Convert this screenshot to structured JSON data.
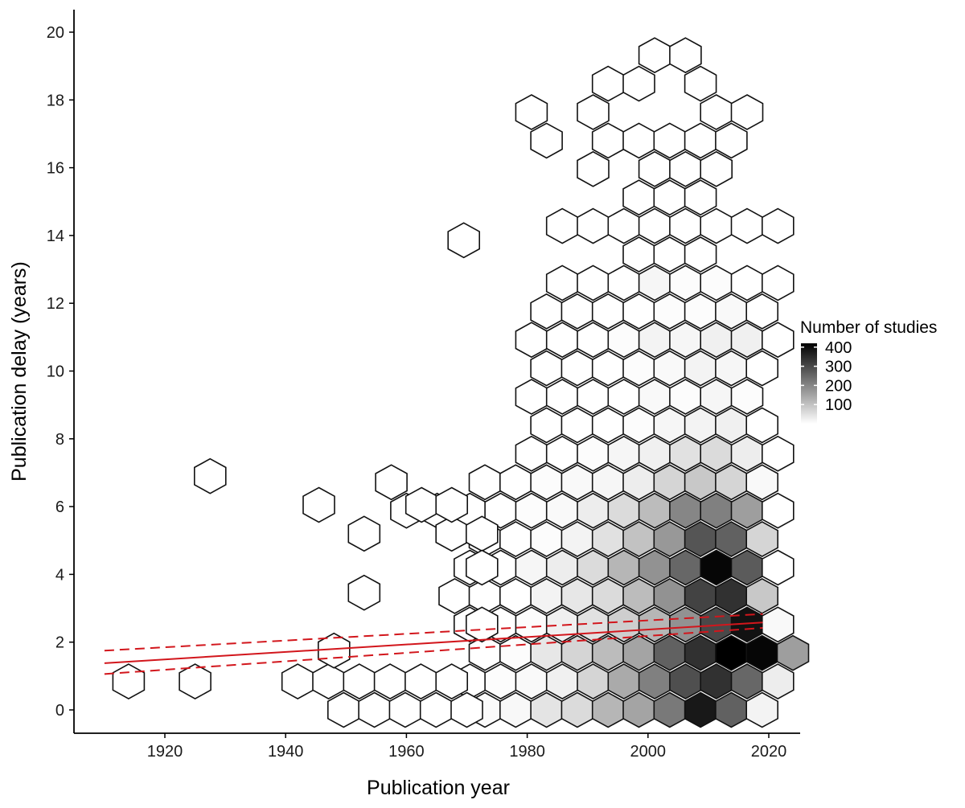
{
  "chart_data": {
    "type": "hexbin",
    "title": "",
    "xlabel": "Publication year",
    "ylabel": "Publication delay (years)",
    "xlim": [
      1905,
      2025
    ],
    "ylim": [
      -0.7,
      20.7
    ],
    "xticks": [
      1920,
      1940,
      1960,
      1980,
      2000,
      2020
    ],
    "yticks": [
      0,
      2,
      4,
      6,
      8,
      10,
      12,
      14,
      16,
      18,
      20
    ],
    "grid": false,
    "legend": {
      "title": "Number of studies",
      "placement": "right",
      "min": 0,
      "max": 420,
      "ticks": [
        100,
        200,
        300,
        400
      ]
    },
    "hex_spacing_years": 5.1,
    "hex_row_height": 0.84,
    "bins": [
      {
        "x": 1973.0,
        "y": 0.0,
        "count": 8
      },
      {
        "x": 1978.1,
        "y": 0.0,
        "count": 12
      },
      {
        "x": 1983.2,
        "y": 0.0,
        "count": 45
      },
      {
        "x": 1988.3,
        "y": 0.0,
        "count": 60
      },
      {
        "x": 1993.4,
        "y": 0.0,
        "count": 120
      },
      {
        "x": 1998.5,
        "y": 0.0,
        "count": 150
      },
      {
        "x": 2003.6,
        "y": 0.0,
        "count": 220
      },
      {
        "x": 2008.7,
        "y": 0.0,
        "count": 380
      },
      {
        "x": 2013.8,
        "y": 0.0,
        "count": 260
      },
      {
        "x": 2018.9,
        "y": 0.0,
        "count": 20
      },
      {
        "x": 1970.5,
        "y": 0.84,
        "count": 0
      },
      {
        "x": 1975.6,
        "y": 0.84,
        "count": 5
      },
      {
        "x": 1980.7,
        "y": 0.84,
        "count": 10
      },
      {
        "x": 1985.8,
        "y": 0.84,
        "count": 25
      },
      {
        "x": 1990.9,
        "y": 0.84,
        "count": 70
      },
      {
        "x": 1996.0,
        "y": 0.84,
        "count": 140
      },
      {
        "x": 2001.1,
        "y": 0.84,
        "count": 210
      },
      {
        "x": 2006.2,
        "y": 0.84,
        "count": 290
      },
      {
        "x": 2011.3,
        "y": 0.84,
        "count": 340
      },
      {
        "x": 2016.4,
        "y": 0.84,
        "count": 250
      },
      {
        "x": 2021.5,
        "y": 0.84,
        "count": 30
      },
      {
        "x": 1973.0,
        "y": 1.68,
        "count": 0
      },
      {
        "x": 1978.1,
        "y": 1.68,
        "count": 5
      },
      {
        "x": 1983.2,
        "y": 1.68,
        "count": 40
      },
      {
        "x": 1988.3,
        "y": 1.68,
        "count": 70
      },
      {
        "x": 1993.4,
        "y": 1.68,
        "count": 110
      },
      {
        "x": 1998.5,
        "y": 1.68,
        "count": 150
      },
      {
        "x": 2003.6,
        "y": 1.68,
        "count": 260
      },
      {
        "x": 2008.7,
        "y": 1.68,
        "count": 340
      },
      {
        "x": 2013.8,
        "y": 1.68,
        "count": 420
      },
      {
        "x": 2018.9,
        "y": 1.68,
        "count": 410
      },
      {
        "x": 2024.0,
        "y": 1.68,
        "count": 160
      },
      {
        "x": 1970.5,
        "y": 2.52,
        "count": 0
      },
      {
        "x": 1975.6,
        "y": 2.52,
        "count": 0
      },
      {
        "x": 1980.7,
        "y": 2.52,
        "count": 5
      },
      {
        "x": 1985.8,
        "y": 2.52,
        "count": 25
      },
      {
        "x": 1990.9,
        "y": 2.52,
        "count": 50
      },
      {
        "x": 1996.0,
        "y": 2.52,
        "count": 80
      },
      {
        "x": 2001.1,
        "y": 2.52,
        "count": 120
      },
      {
        "x": 2006.2,
        "y": 2.52,
        "count": 180
      },
      {
        "x": 2011.3,
        "y": 2.52,
        "count": 300
      },
      {
        "x": 2016.4,
        "y": 2.52,
        "count": 390
      },
      {
        "x": 2021.5,
        "y": 2.52,
        "count": 10
      },
      {
        "x": 1968.0,
        "y": 3.36,
        "count": 0
      },
      {
        "x": 1973.0,
        "y": 3.36,
        "count": 0
      },
      {
        "x": 1978.1,
        "y": 3.36,
        "count": 0
      },
      {
        "x": 1983.2,
        "y": 3.36,
        "count": 20
      },
      {
        "x": 1988.3,
        "y": 3.36,
        "count": 40
      },
      {
        "x": 1993.4,
        "y": 3.36,
        "count": 60
      },
      {
        "x": 1998.5,
        "y": 3.36,
        "count": 110
      },
      {
        "x": 2003.6,
        "y": 3.36,
        "count": 180
      },
      {
        "x": 2008.7,
        "y": 3.36,
        "count": 310
      },
      {
        "x": 2013.8,
        "y": 3.36,
        "count": 340
      },
      {
        "x": 2018.9,
        "y": 3.36,
        "count": 90
      },
      {
        "x": 1970.5,
        "y": 4.2,
        "count": 0
      },
      {
        "x": 1975.6,
        "y": 4.2,
        "count": 0
      },
      {
        "x": 1980.7,
        "y": 4.2,
        "count": 15
      },
      {
        "x": 1985.8,
        "y": 4.2,
        "count": 30
      },
      {
        "x": 1990.9,
        "y": 4.2,
        "count": 60
      },
      {
        "x": 1996.0,
        "y": 4.2,
        "count": 120
      },
      {
        "x": 2001.1,
        "y": 4.2,
        "count": 180
      },
      {
        "x": 2006.2,
        "y": 4.2,
        "count": 250
      },
      {
        "x": 2011.3,
        "y": 4.2,
        "count": 410
      },
      {
        "x": 2016.4,
        "y": 4.2,
        "count": 270
      },
      {
        "x": 2021.5,
        "y": 4.2,
        "count": 0
      },
      {
        "x": 1973.0,
        "y": 5.04,
        "count": 0
      },
      {
        "x": 1978.1,
        "y": 5.04,
        "count": 0
      },
      {
        "x": 1983.2,
        "y": 5.04,
        "count": 5
      },
      {
        "x": 1988.3,
        "y": 5.04,
        "count": 20
      },
      {
        "x": 1993.4,
        "y": 5.04,
        "count": 50
      },
      {
        "x": 1998.5,
        "y": 5.04,
        "count": 100
      },
      {
        "x": 2003.6,
        "y": 5.04,
        "count": 170
      },
      {
        "x": 2008.7,
        "y": 5.04,
        "count": 280
      },
      {
        "x": 2013.8,
        "y": 5.04,
        "count": 260
      },
      {
        "x": 2018.9,
        "y": 5.04,
        "count": 70
      },
      {
        "x": 1960.0,
        "y": 5.88,
        "count": 0
      },
      {
        "x": 1965.1,
        "y": 5.88,
        "count": 0
      },
      {
        "x": 1970.5,
        "y": 5.88,
        "count": 0
      },
      {
        "x": 1975.6,
        "y": 5.88,
        "count": 0
      },
      {
        "x": 1980.7,
        "y": 5.88,
        "count": 5
      },
      {
        "x": 1985.8,
        "y": 5.88,
        "count": 10
      },
      {
        "x": 1990.9,
        "y": 5.88,
        "count": 30
      },
      {
        "x": 1996.0,
        "y": 5.88,
        "count": 60
      },
      {
        "x": 2001.1,
        "y": 5.88,
        "count": 110
      },
      {
        "x": 2006.2,
        "y": 5.88,
        "count": 200
      },
      {
        "x": 2011.3,
        "y": 5.88,
        "count": 210
      },
      {
        "x": 2016.4,
        "y": 5.88,
        "count": 160
      },
      {
        "x": 2021.5,
        "y": 5.88,
        "count": 0
      },
      {
        "x": 1957.5,
        "y": 6.72,
        "count": 0
      },
      {
        "x": 1973.0,
        "y": 6.72,
        "count": 0
      },
      {
        "x": 1978.1,
        "y": 6.72,
        "count": 0
      },
      {
        "x": 1983.2,
        "y": 6.72,
        "count": 5
      },
      {
        "x": 1988.3,
        "y": 6.72,
        "count": 10
      },
      {
        "x": 1993.4,
        "y": 6.72,
        "count": 15
      },
      {
        "x": 1998.5,
        "y": 6.72,
        "count": 30
      },
      {
        "x": 2003.6,
        "y": 6.72,
        "count": 70
      },
      {
        "x": 2008.7,
        "y": 6.72,
        "count": 90
      },
      {
        "x": 2013.8,
        "y": 6.72,
        "count": 70
      },
      {
        "x": 2018.9,
        "y": 6.72,
        "count": 10
      },
      {
        "x": 1980.7,
        "y": 7.56,
        "count": 0
      },
      {
        "x": 1985.8,
        "y": 7.56,
        "count": 0
      },
      {
        "x": 1990.9,
        "y": 7.56,
        "count": 5
      },
      {
        "x": 1996.0,
        "y": 7.56,
        "count": 15
      },
      {
        "x": 2001.1,
        "y": 7.56,
        "count": 25
      },
      {
        "x": 2006.2,
        "y": 7.56,
        "count": 50
      },
      {
        "x": 2011.3,
        "y": 7.56,
        "count": 60
      },
      {
        "x": 2016.4,
        "y": 7.56,
        "count": 30
      },
      {
        "x": 2021.5,
        "y": 7.56,
        "count": 0
      },
      {
        "x": 1983.2,
        "y": 8.4,
        "count": 0
      },
      {
        "x": 1988.3,
        "y": 8.4,
        "count": 0
      },
      {
        "x": 1993.4,
        "y": 8.4,
        "count": 0
      },
      {
        "x": 1998.5,
        "y": 8.4,
        "count": 5
      },
      {
        "x": 2003.6,
        "y": 8.4,
        "count": 15
      },
      {
        "x": 2008.7,
        "y": 8.4,
        "count": 20
      },
      {
        "x": 2013.8,
        "y": 8.4,
        "count": 25
      },
      {
        "x": 2018.9,
        "y": 8.4,
        "count": 0
      },
      {
        "x": 1980.7,
        "y": 9.24,
        "count": 0
      },
      {
        "x": 1985.8,
        "y": 9.24,
        "count": 0
      },
      {
        "x": 1990.9,
        "y": 9.24,
        "count": 0
      },
      {
        "x": 1996.0,
        "y": 9.24,
        "count": 0
      },
      {
        "x": 2001.1,
        "y": 9.24,
        "count": 10
      },
      {
        "x": 2006.2,
        "y": 9.24,
        "count": 5
      },
      {
        "x": 2011.3,
        "y": 9.24,
        "count": 15
      },
      {
        "x": 2016.4,
        "y": 9.24,
        "count": 5
      },
      {
        "x": 1983.2,
        "y": 10.08,
        "count": 0
      },
      {
        "x": 1988.3,
        "y": 10.08,
        "count": 0
      },
      {
        "x": 1993.4,
        "y": 10.08,
        "count": 0
      },
      {
        "x": 1998.5,
        "y": 10.08,
        "count": 5
      },
      {
        "x": 2003.6,
        "y": 10.08,
        "count": 10
      },
      {
        "x": 2008.7,
        "y": 10.08,
        "count": 20
      },
      {
        "x": 2013.8,
        "y": 10.08,
        "count": 15
      },
      {
        "x": 2018.9,
        "y": 10.08,
        "count": 0
      },
      {
        "x": 1980.7,
        "y": 10.92,
        "count": 0
      },
      {
        "x": 1985.8,
        "y": 10.92,
        "count": 0
      },
      {
        "x": 1990.9,
        "y": 10.92,
        "count": 0
      },
      {
        "x": 1996.0,
        "y": 10.92,
        "count": 5
      },
      {
        "x": 2001.1,
        "y": 10.92,
        "count": 20
      },
      {
        "x": 2006.2,
        "y": 10.92,
        "count": 15
      },
      {
        "x": 2011.3,
        "y": 10.92,
        "count": 25
      },
      {
        "x": 2016.4,
        "y": 10.92,
        "count": 25
      },
      {
        "x": 2021.5,
        "y": 10.92,
        "count": 0
      },
      {
        "x": 1983.2,
        "y": 11.76,
        "count": 0
      },
      {
        "x": 1988.3,
        "y": 11.76,
        "count": 0
      },
      {
        "x": 1993.4,
        "y": 11.76,
        "count": 0
      },
      {
        "x": 1998.5,
        "y": 11.76,
        "count": 0
      },
      {
        "x": 2003.6,
        "y": 11.76,
        "count": 5
      },
      {
        "x": 2008.7,
        "y": 11.76,
        "count": 5
      },
      {
        "x": 2013.8,
        "y": 11.76,
        "count": 10
      },
      {
        "x": 2018.9,
        "y": 11.76,
        "count": 0
      },
      {
        "x": 1985.8,
        "y": 12.6,
        "count": 0
      },
      {
        "x": 1990.9,
        "y": 12.6,
        "count": 0
      },
      {
        "x": 1996.0,
        "y": 12.6,
        "count": 0
      },
      {
        "x": 2001.1,
        "y": 12.6,
        "count": 15
      },
      {
        "x": 2006.2,
        "y": 12.6,
        "count": 5
      },
      {
        "x": 2011.3,
        "y": 12.6,
        "count": 5
      },
      {
        "x": 2016.4,
        "y": 12.6,
        "count": 0
      },
      {
        "x": 2021.5,
        "y": 12.6,
        "count": 0
      },
      {
        "x": 1969.5,
        "y": 13.86,
        "count": 0
      },
      {
        "x": 1998.5,
        "y": 13.44,
        "count": 0
      },
      {
        "x": 2003.6,
        "y": 13.44,
        "count": 0
      },
      {
        "x": 2008.7,
        "y": 13.44,
        "count": 0
      },
      {
        "x": 1985.8,
        "y": 14.28,
        "count": 0
      },
      {
        "x": 1990.9,
        "y": 14.28,
        "count": 0
      },
      {
        "x": 1996.0,
        "y": 14.28,
        "count": 0
      },
      {
        "x": 2001.1,
        "y": 14.28,
        "count": 0
      },
      {
        "x": 2006.2,
        "y": 14.28,
        "count": 0
      },
      {
        "x": 2011.3,
        "y": 14.28,
        "count": 0
      },
      {
        "x": 2016.4,
        "y": 14.28,
        "count": 0
      },
      {
        "x": 2021.5,
        "y": 14.28,
        "count": 0
      },
      {
        "x": 1998.5,
        "y": 15.12,
        "count": 0
      },
      {
        "x": 2003.6,
        "y": 15.12,
        "count": 0
      },
      {
        "x": 2008.7,
        "y": 15.12,
        "count": 0
      },
      {
        "x": 1990.9,
        "y": 15.96,
        "count": 0
      },
      {
        "x": 2001.1,
        "y": 15.96,
        "count": 0
      },
      {
        "x": 2006.2,
        "y": 15.96,
        "count": 0
      },
      {
        "x": 2011.3,
        "y": 15.96,
        "count": 0
      },
      {
        "x": 1983.2,
        "y": 16.8,
        "count": 0
      },
      {
        "x": 1993.4,
        "y": 16.8,
        "count": 0
      },
      {
        "x": 1998.5,
        "y": 16.8,
        "count": 0
      },
      {
        "x": 2003.6,
        "y": 16.8,
        "count": 0
      },
      {
        "x": 2008.7,
        "y": 16.8,
        "count": 0
      },
      {
        "x": 2013.8,
        "y": 16.8,
        "count": 0
      },
      {
        "x": 1980.7,
        "y": 17.64,
        "count": 0
      },
      {
        "x": 1990.9,
        "y": 17.64,
        "count": 0
      },
      {
        "x": 2011.3,
        "y": 17.64,
        "count": 0
      },
      {
        "x": 2016.4,
        "y": 17.64,
        "count": 0
      },
      {
        "x": 1993.4,
        "y": 18.48,
        "count": 0
      },
      {
        "x": 1998.5,
        "y": 18.48,
        "count": 0
      },
      {
        "x": 2008.7,
        "y": 18.48,
        "count": 0
      },
      {
        "x": 2001.1,
        "y": 19.32,
        "count": 0
      },
      {
        "x": 2006.2,
        "y": 19.32,
        "count": 0
      },
      {
        "x": 1914.0,
        "y": 0.84,
        "count": 0
      },
      {
        "x": 1925.0,
        "y": 0.84,
        "count": 0
      },
      {
        "x": 1942.0,
        "y": 0.84,
        "count": 0
      },
      {
        "x": 1947.1,
        "y": 0.84,
        "count": 0
      },
      {
        "x": 1952.2,
        "y": 0.84,
        "count": 0
      },
      {
        "x": 1957.3,
        "y": 0.84,
        "count": 0
      },
      {
        "x": 1962.4,
        "y": 0.84,
        "count": 0
      },
      {
        "x": 1967.5,
        "y": 0.84,
        "count": 0
      },
      {
        "x": 1949.6,
        "y": 0.0,
        "count": 0
      },
      {
        "x": 1954.7,
        "y": 0.0,
        "count": 0
      },
      {
        "x": 1959.8,
        "y": 0.0,
        "count": 0
      },
      {
        "x": 1964.9,
        "y": 0.0,
        "count": 0
      },
      {
        "x": 1970.0,
        "y": 0.0,
        "count": 0
      },
      {
        "x": 1948.0,
        "y": 1.75,
        "count": 0
      },
      {
        "x": 1953.0,
        "y": 3.46,
        "count": 0
      },
      {
        "x": 1953.0,
        "y": 5.2,
        "count": 0
      },
      {
        "x": 1945.5,
        "y": 6.05,
        "count": 0
      },
      {
        "x": 1927.5,
        "y": 6.9,
        "count": 0
      },
      {
        "x": 1962.5,
        "y": 6.05,
        "count": 0
      },
      {
        "x": 1967.5,
        "y": 5.2,
        "count": 0
      },
      {
        "x": 1967.5,
        "y": 6.05,
        "count": 0
      },
      {
        "x": 1972.5,
        "y": 5.2,
        "count": 0
      },
      {
        "x": 1972.5,
        "y": 4.2,
        "count": 0
      },
      {
        "x": 1972.5,
        "y": 2.52,
        "count": 0
      }
    ],
    "trend": {
      "x": [
        1910,
        2019
      ],
      "fit": [
        1.38,
        2.58
      ],
      "lower": [
        1.06,
        2.42
      ],
      "upper": [
        1.75,
        2.83
      ],
      "color": "#d2161c"
    }
  }
}
